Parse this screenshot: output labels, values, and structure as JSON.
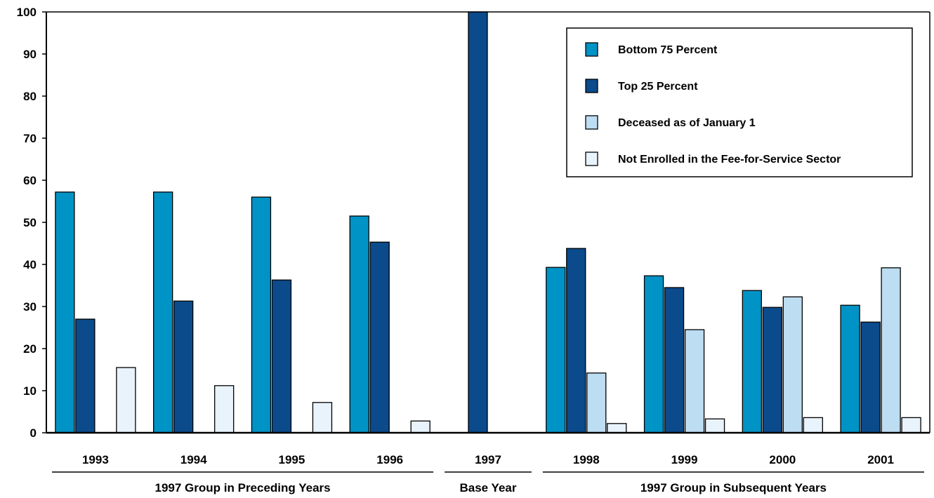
{
  "chart_data": {
    "type": "bar",
    "title": "",
    "xlabel": "",
    "ylabel": "",
    "ylim": [
      0,
      100
    ],
    "yticks": [
      0,
      10,
      20,
      30,
      40,
      50,
      60,
      70,
      80,
      90,
      100
    ],
    "grid": false,
    "legend_position": "top-right",
    "categories": [
      "1993",
      "1994",
      "1995",
      "1996",
      "1997",
      "1998",
      "1999",
      "2000",
      "2001"
    ],
    "series": [
      {
        "name": "Bottom 75 Percent",
        "color": "#0093c6",
        "values": [
          57.2,
          57.2,
          56.0,
          51.5,
          null,
          39.3,
          37.3,
          33.8,
          30.3
        ]
      },
      {
        "name": "Top 25 Percent",
        "color": "#0b4a8b",
        "values": [
          27.0,
          31.3,
          36.3,
          45.3,
          100,
          43.8,
          34.5,
          29.8,
          26.3
        ]
      },
      {
        "name": "Deceased as of January 1",
        "color": "#bcddf2",
        "values": [
          null,
          null,
          null,
          null,
          null,
          14.2,
          24.5,
          32.3,
          39.2
        ]
      },
      {
        "name": "Not Enrolled in the Fee-for-Service Sector",
        "color": "#e8f3fc",
        "values": [
          15.5,
          11.2,
          7.2,
          2.8,
          null,
          2.2,
          3.3,
          3.6,
          3.6
        ]
      }
    ],
    "groups": [
      {
        "label": "1997 Group in Preceding Years",
        "categories": [
          "1993",
          "1994",
          "1995",
          "1996"
        ]
      },
      {
        "label": "Base Year",
        "categories": [
          "1997"
        ]
      },
      {
        "label": "1997 Group in Subsequent Years",
        "categories": [
          "1998",
          "1999",
          "2000",
          "2001"
        ]
      }
    ]
  }
}
